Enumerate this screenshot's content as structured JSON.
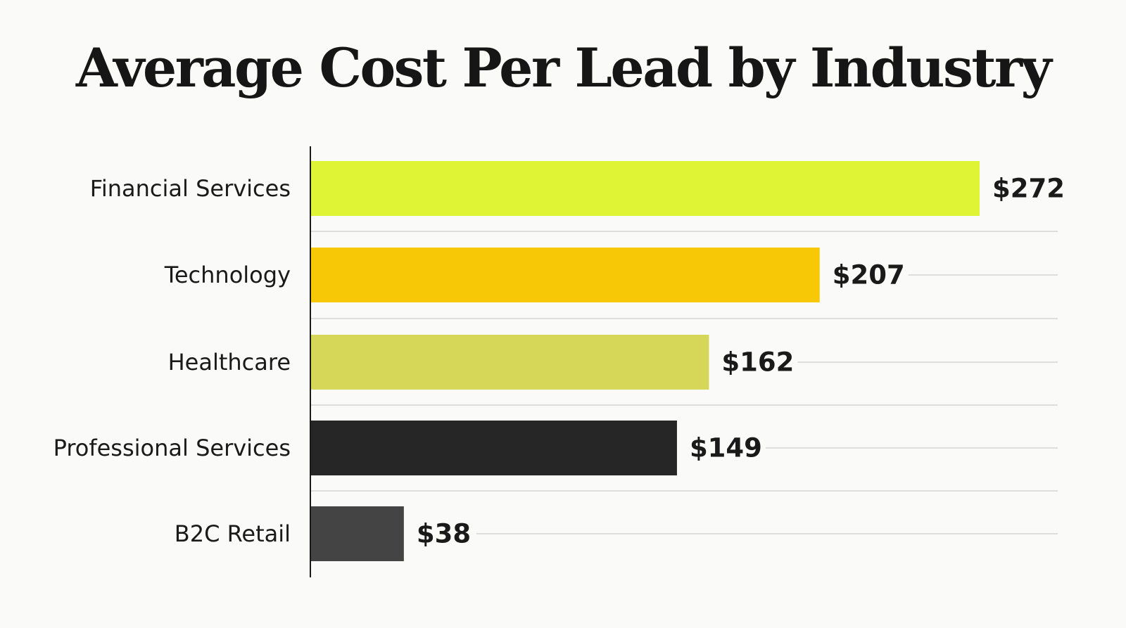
{
  "chart_data": {
    "type": "bar",
    "orientation": "horizontal",
    "title": "Average Cost Per Lead by Industry",
    "xlabel": "",
    "ylabel": "",
    "categories": [
      "Financial Services",
      "Technology",
      "Healthcare",
      "Professional Services",
      "B2C Retail"
    ],
    "values": [
      272,
      207,
      162,
      149,
      38
    ],
    "value_labels": [
      "$272",
      "$207",
      "$162",
      "$149",
      "$38"
    ],
    "colors": [
      "#dff435",
      "#f7c806",
      "#d6d658",
      "#262626",
      "#444444"
    ],
    "grid": true,
    "legend": "none"
  }
}
